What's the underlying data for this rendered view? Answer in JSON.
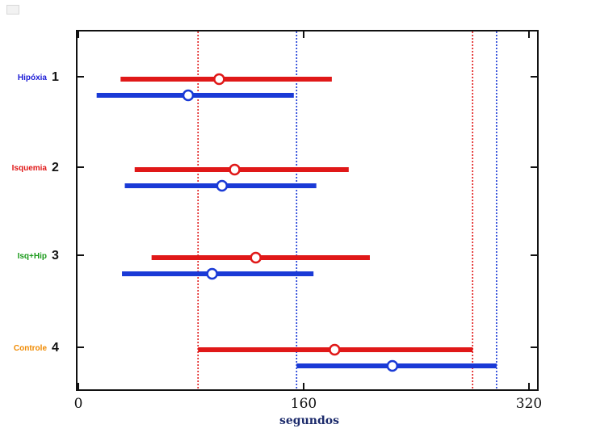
{
  "chart_data": {
    "type": "scatter",
    "xlabel": "segundos",
    "xlim": [
      0,
      320
    ],
    "x_ticks": [
      0,
      160,
      320
    ],
    "y_ticks": [
      "1",
      "2",
      "3",
      "4"
    ],
    "categories": [
      {
        "num": "1",
        "label": "Hipóxia",
        "color": "#1a1ad6"
      },
      {
        "num": "2",
        "label": "Isquemia",
        "color": "#e01818"
      },
      {
        "num": "3",
        "label": "Isq+Hip",
        "color": "#1a9a1a"
      },
      {
        "num": "4",
        "label": "Controle",
        "color": "#f08a00"
      }
    ],
    "series": [
      {
        "color": "#e01818",
        "points": [
          {
            "category": "1",
            "center": 100,
            "low": 30,
            "high": 180
          },
          {
            "category": "2",
            "center": 111,
            "low": 40,
            "high": 192
          },
          {
            "category": "3",
            "center": 126,
            "low": 52,
            "high": 207
          },
          {
            "category": "4",
            "center": 182,
            "low": 85,
            "high": 280
          }
        ]
      },
      {
        "color": "#1a3ad6",
        "points": [
          {
            "category": "1",
            "center": 78,
            "low": 13,
            "high": 153
          },
          {
            "category": "2",
            "center": 102,
            "low": 33,
            "high": 169
          },
          {
            "category": "3",
            "center": 95,
            "low": 31,
            "high": 167
          },
          {
            "category": "4",
            "center": 223,
            "low": 155,
            "high": 297
          }
        ]
      }
    ],
    "reference_lines": [
      {
        "x": 85,
        "color": "#e01818"
      },
      {
        "x": 155,
        "color": "#1a3ad6"
      },
      {
        "x": 280,
        "color": "#e01818"
      },
      {
        "x": 297,
        "color": "#1a3ad6"
      }
    ],
    "grid": false
  }
}
